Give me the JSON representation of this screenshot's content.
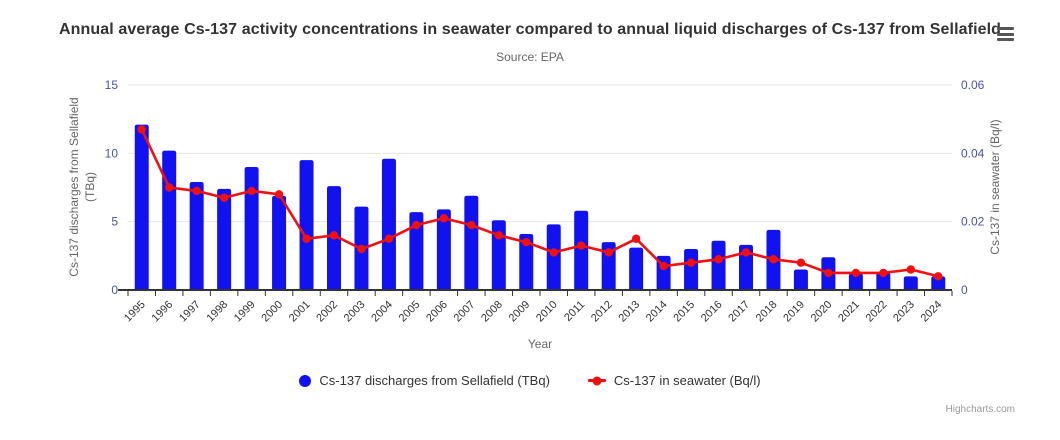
{
  "header": {
    "title": "Annual average Cs-137 activity concentrations in seawater compared to annual liquid discharges of Cs-137 from Sellafield",
    "subtitle": "Source: EPA"
  },
  "chart_data": {
    "type": "combo",
    "title": "Annual average Cs-137 activity concentrations in seawater compared to annual liquid discharges of Cs-137 from Sellafield",
    "subtitle": "Source: EPA",
    "xlabel": "Year",
    "grid": true,
    "legend_position": "bottom",
    "x_tick_label_rotation": -45,
    "categories": [
      1995,
      1996,
      1997,
      1998,
      1999,
      2000,
      2001,
      2002,
      2003,
      2004,
      2005,
      2006,
      2007,
      2008,
      2009,
      2010,
      2011,
      2012,
      2013,
      2014,
      2015,
      2016,
      2017,
      2018,
      2019,
      2020,
      2021,
      2022,
      2023,
      2024
    ],
    "series": [
      {
        "name": "Cs-137 discharges from Sellafield (TBq)",
        "type": "bar",
        "y_axis": "left",
        "color": "#1212f0",
        "values": [
          12.1,
          10.2,
          7.9,
          7.4,
          9.0,
          6.9,
          9.5,
          7.6,
          6.1,
          9.6,
          5.7,
          5.9,
          6.9,
          5.1,
          4.1,
          4.8,
          5.8,
          3.5,
          3.1,
          2.5,
          3.0,
          3.6,
          3.3,
          4.4,
          1.5,
          2.4,
          1.2,
          1.3,
          1.0,
          1.0
        ]
      },
      {
        "name": "Cs-137 in seawater (Bq/l)",
        "type": "line",
        "y_axis": "right",
        "color": "#f01010",
        "values": [
          0.047,
          0.03,
          0.029,
          0.027,
          0.029,
          0.028,
          0.015,
          0.016,
          0.012,
          0.015,
          0.019,
          0.021,
          0.019,
          0.016,
          0.014,
          0.011,
          0.013,
          0.011,
          0.015,
          0.007,
          0.008,
          0.009,
          0.011,
          0.009,
          0.008,
          0.005,
          0.005,
          0.005,
          0.006,
          0.004
        ]
      }
    ],
    "y_left": {
      "title": "Cs-137 discharges from Sellafield (TBq)",
      "title_lines": [
        "Cs-137 discharges from Sellafield",
        "(TBq)"
      ],
      "min": 0,
      "max": 15,
      "ticks": [
        0,
        5,
        10,
        15
      ]
    },
    "y_right": {
      "title": "Cs-137 in seawater (Bq/l)",
      "min": 0,
      "max": 0.06,
      "ticks": [
        0,
        0.02,
        0.04,
        0.06
      ]
    }
  },
  "legend": {
    "items": [
      {
        "label": "Cs-137 discharges from Sellafield (TBq)",
        "marker": "circle"
      },
      {
        "label": "Cs-137 in seawater (Bq/l)",
        "marker": "line-dot"
      }
    ]
  },
  "credits": {
    "label": "Highcharts.com"
  },
  "colors": {
    "bar": "#1212f0",
    "line": "#f01010",
    "y_tick_labels": "#4b51a5",
    "x_tick_labels": "#333333",
    "axis_titles": "#666666",
    "title_text": "#333333",
    "subtitle_text": "#666666",
    "gridline": "#e6e6e6",
    "x_axis_line": "#333333",
    "credits_text": "#999999",
    "menu_icon": "#555555"
  }
}
